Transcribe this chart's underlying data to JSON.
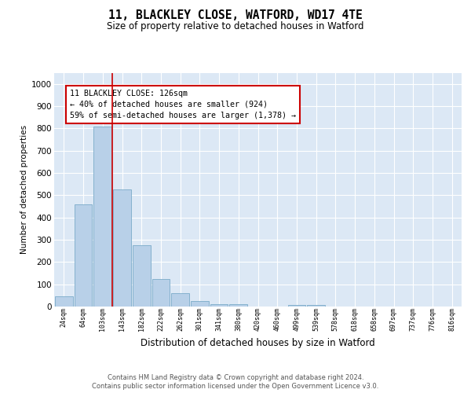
{
  "title1": "11, BLACKLEY CLOSE, WATFORD, WD17 4TE",
  "title2": "Size of property relative to detached houses in Watford",
  "xlabel": "Distribution of detached houses by size in Watford",
  "ylabel": "Number of detached properties",
  "categories": [
    "24sqm",
    "64sqm",
    "103sqm",
    "143sqm",
    "182sqm",
    "222sqm",
    "262sqm",
    "301sqm",
    "341sqm",
    "380sqm",
    "420sqm",
    "460sqm",
    "499sqm",
    "539sqm",
    "578sqm",
    "618sqm",
    "658sqm",
    "697sqm",
    "737sqm",
    "776sqm",
    "816sqm"
  ],
  "values": [
    45,
    460,
    810,
    525,
    275,
    125,
    60,
    25,
    12,
    12,
    0,
    0,
    8,
    8,
    0,
    0,
    0,
    0,
    0,
    0,
    0
  ],
  "bar_color": "#b8d0e8",
  "bar_edge_color": "#7aaac8",
  "property_line_color": "#cc0000",
  "annotation_text": "11 BLACKLEY CLOSE: 126sqm\n← 40% of detached houses are smaller (924)\n59% of semi-detached houses are larger (1,378) →",
  "annotation_box_color": "#cc0000",
  "ylim": [
    0,
    1050
  ],
  "yticks": [
    0,
    100,
    200,
    300,
    400,
    500,
    600,
    700,
    800,
    900,
    1000
  ],
  "footer1": "Contains HM Land Registry data © Crown copyright and database right 2024.",
  "footer2": "Contains public sector information licensed under the Open Government Licence v3.0.",
  "plot_bg_color": "#dce8f5",
  "fig_bg_color": "#ffffff"
}
